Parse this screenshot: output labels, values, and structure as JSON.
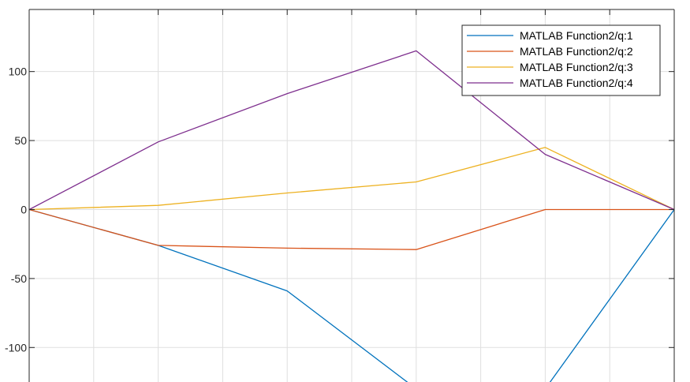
{
  "chart_data": {
    "type": "line",
    "title": "",
    "xlabel": "",
    "ylabel": "",
    "x": [
      0,
      1,
      2,
      3,
      4,
      5
    ],
    "xlim": [
      0,
      5
    ],
    "ylim": [
      -125,
      145
    ],
    "yticks": [
      -100,
      -50,
      0,
      50,
      100
    ],
    "ytick_labels": [
      "-100",
      "-50",
      "0",
      "50",
      "100"
    ],
    "x_minor_count": 10,
    "grid": true,
    "legend_position": "top-right",
    "series": [
      {
        "name": "MATLAB Function2/q:1",
        "color": "#0072BD",
        "values": [
          0,
          -26,
          -59,
          -130,
          -130,
          0
        ]
      },
      {
        "name": "MATLAB Function2/q:2",
        "color": "#D95319",
        "values": [
          0,
          -26,
          -28,
          -29,
          0,
          0
        ]
      },
      {
        "name": "MATLAB Function2/q:3",
        "color": "#EDB120",
        "values": [
          0,
          3,
          12,
          20,
          45,
          0
        ]
      },
      {
        "name": "MATLAB Function2/q:4",
        "color": "#7E2F8E",
        "values": [
          0,
          49,
          84,
          115,
          40,
          0
        ]
      }
    ]
  }
}
